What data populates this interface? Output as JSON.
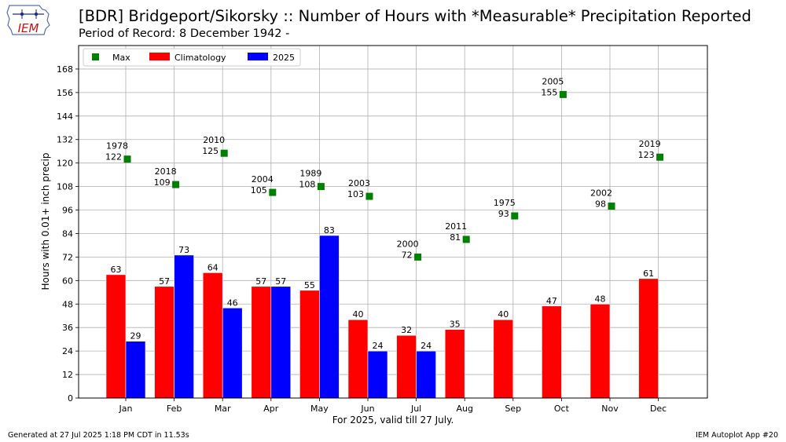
{
  "header": {
    "title": "[BDR] Bridgeport/Sikorsky :: Number of Hours with *Measurable* Precipitation Reported",
    "subtitle": "Period of Record: 8 December 1942 -",
    "logo_text": "IEM"
  },
  "footer": {
    "left": "Generated at 27 Jul 2025 1:18 PM CDT in 11.53s",
    "right": "IEM Autoplot App #20"
  },
  "colors": {
    "max": "#008000",
    "climatology": "#ff0000",
    "current": "#0000ff",
    "grid": "#b0b0b0"
  },
  "chart_data": {
    "type": "bar",
    "xlabel": "For 2025, valid till 27 July.",
    "ylabel": "Hours with 0.01+ inch precip",
    "ylim": [
      0,
      180
    ],
    "yticks": [
      0,
      12,
      24,
      36,
      48,
      60,
      72,
      84,
      96,
      108,
      120,
      132,
      144,
      156,
      168
    ],
    "grid": true,
    "legend_position": "top-left",
    "categories": [
      "Jan",
      "Feb",
      "Mar",
      "Apr",
      "May",
      "Jun",
      "Jul",
      "Aug",
      "Sep",
      "Oct",
      "Nov",
      "Dec"
    ],
    "series": [
      {
        "name": "Max",
        "kind": "scatter",
        "values": [
          122,
          109,
          125,
          105,
          108,
          103,
          72,
          81,
          93,
          155,
          98,
          123
        ],
        "years": [
          "1978",
          "2018",
          "2010",
          "2004",
          "1989",
          "2003",
          "2000",
          "2011",
          "1975",
          "2005",
          "2002",
          "2019"
        ]
      },
      {
        "name": "Climatology",
        "kind": "bar",
        "values": [
          63,
          57,
          64,
          57,
          55,
          40,
          32,
          35,
          40,
          47,
          48,
          61
        ]
      },
      {
        "name": "2025",
        "kind": "bar",
        "values": [
          29,
          73,
          46,
          57,
          83,
          24,
          24,
          null,
          null,
          null,
          null,
          null
        ]
      }
    ]
  }
}
